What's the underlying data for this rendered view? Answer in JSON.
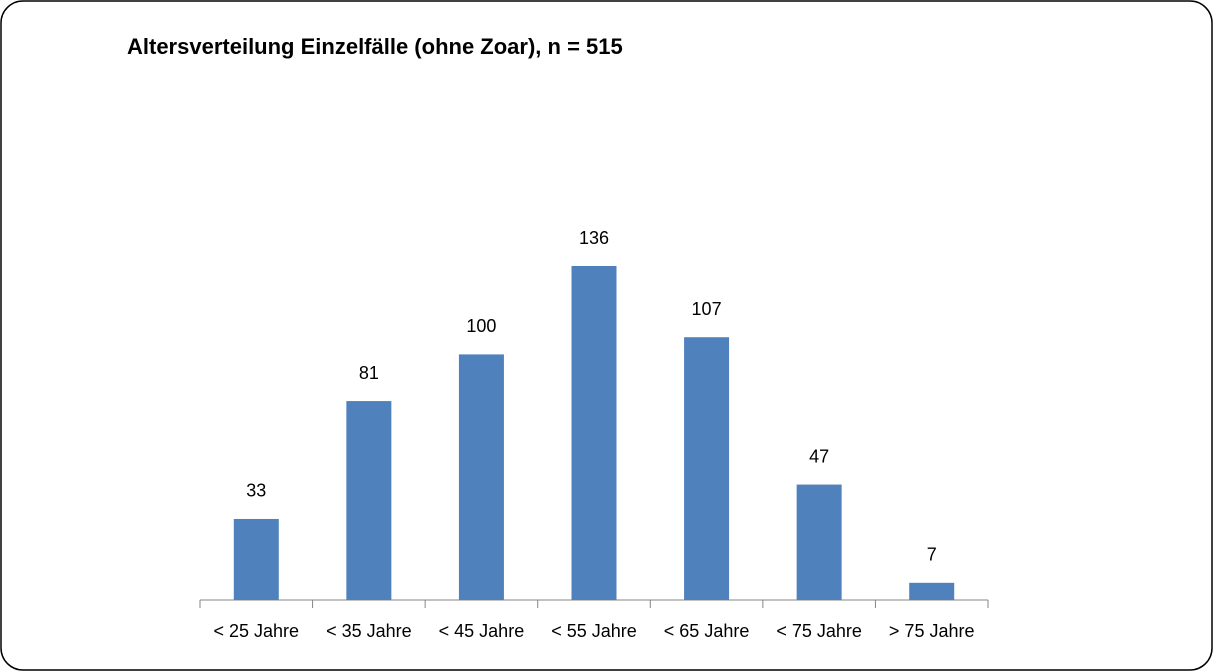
{
  "chart_data": {
    "type": "bar",
    "title": "Altersverteilung Einzelfälle (ohne Zoar), n = 515",
    "categories": [
      "< 25 Jahre",
      "< 35 Jahre",
      "< 45 Jahre",
      "< 55 Jahre",
      "< 65 Jahre",
      "< 75 Jahre",
      "> 75 Jahre"
    ],
    "values": [
      33,
      81,
      100,
      136,
      107,
      47,
      7
    ],
    "color": "#4f81bd"
  }
}
